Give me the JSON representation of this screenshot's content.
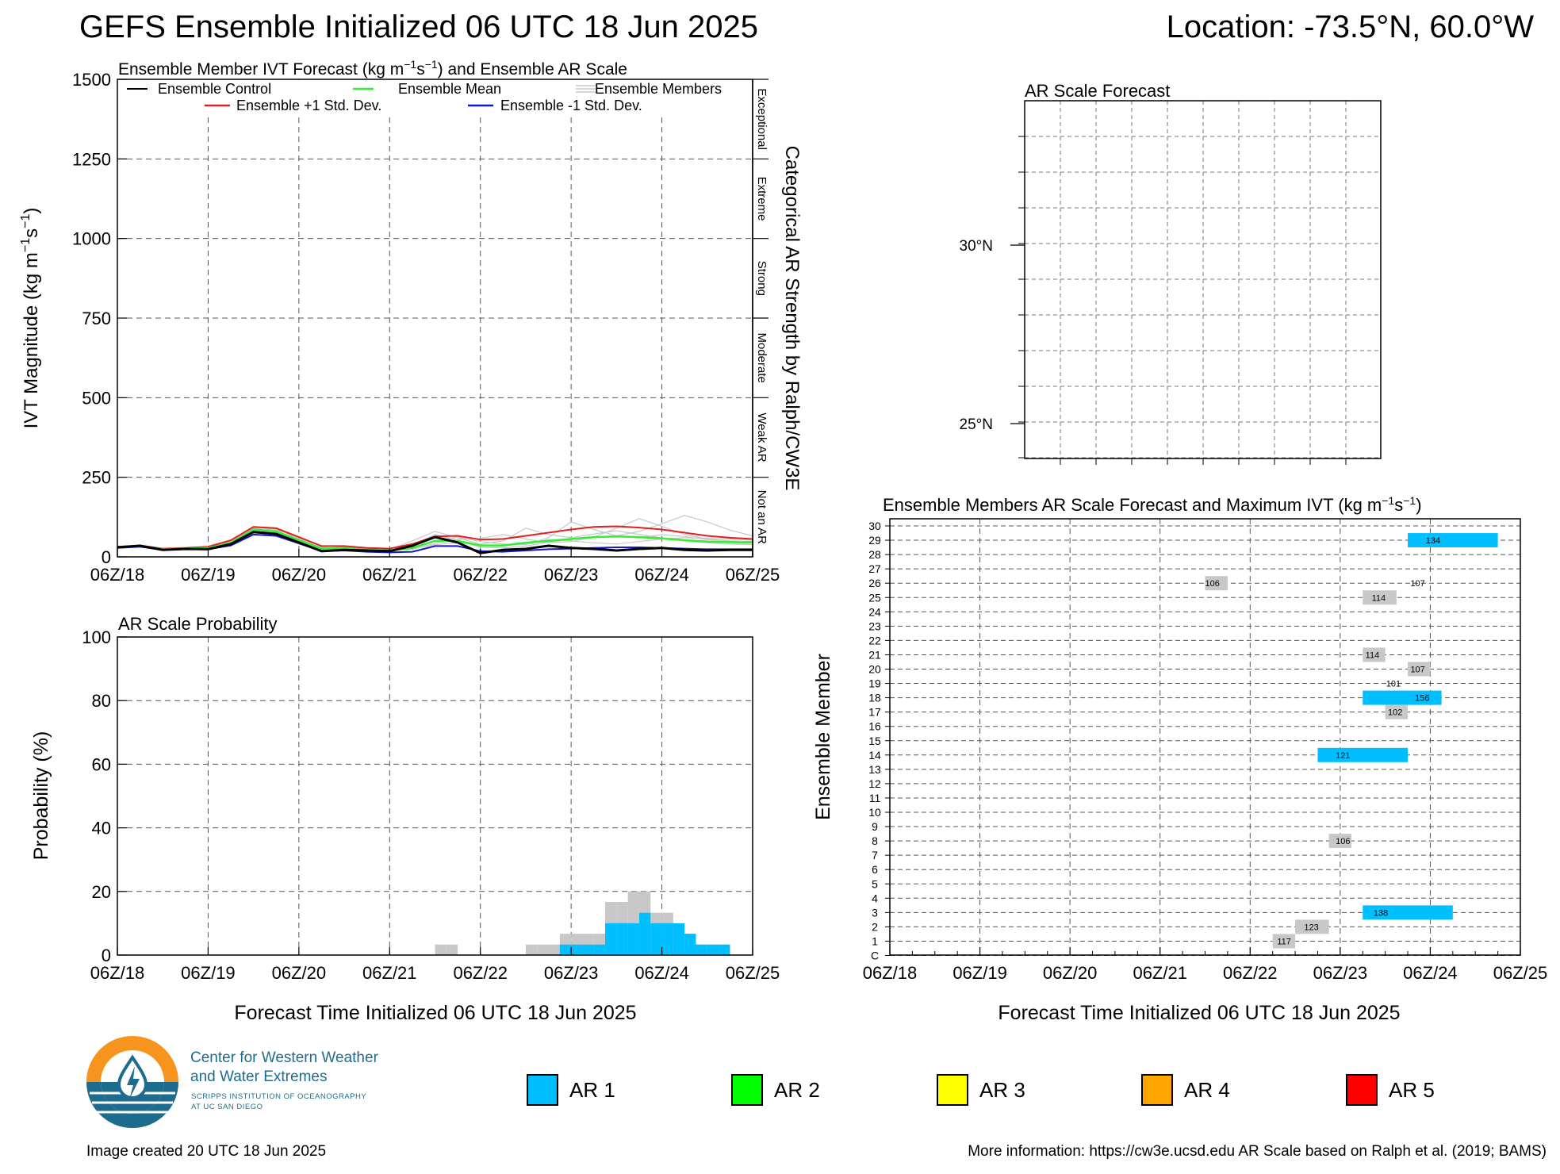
{
  "header": {
    "title": "GEFS Ensemble Initialized 06 UTC 18 Jun 2025",
    "location": "Location: -73.5°N, 60.0°W"
  },
  "colors": {
    "ar1": "#00bfff",
    "ar2": "#00ff00",
    "ar3": "#ffff00",
    "ar4": "#ffa500",
    "ar5": "#ff0000",
    "gray_bar": "#c8c8c8",
    "control": "#000000",
    "mean": "#33ee33",
    "plus_sd": "#e02020",
    "minus_sd": "#1515d0",
    "members": "#c8c8c8"
  },
  "x_ticks": [
    "06Z/18",
    "06Z/19",
    "06Z/20",
    "06Z/21",
    "06Z/22",
    "06Z/23",
    "06Z/24",
    "06Z/25"
  ],
  "chart_data": [
    {
      "id": "ivt",
      "type": "line",
      "title_pre": "Ensemble Member IVT Forecast (kg m",
      "title_sup1": "−1",
      "title_mid": "s",
      "title_sup2": "−1",
      "title_post": ") and Ensemble AR Scale",
      "ylabel_pre": "IVT Magnitude (kg m",
      "ylabel_sup1": "−1",
      "ylabel_mid": "s",
      "ylabel_sup2": "−1",
      "ylabel_post": ")",
      "right_axis_label": "Categorical AR Strength by Ralph/CW3E",
      "categories_right": [
        {
          "label": "Not an AR",
          "from": 0,
          "to": 250
        },
        {
          "label": "Weak AR",
          "from": 250,
          "to": 500
        },
        {
          "label": "Moderate",
          "from": 500,
          "to": 750
        },
        {
          "label": "Strong",
          "from": 750,
          "to": 1000
        },
        {
          "label": "Extreme",
          "from": 1000,
          "to": 1250
        },
        {
          "label": "Exceptional",
          "from": 1250,
          "to": 1500
        }
      ],
      "ylim": [
        0,
        1500
      ],
      "yticks": [
        0,
        250,
        500,
        750,
        1000,
        1250,
        1500
      ],
      "xlim_days": [
        0,
        7
      ],
      "grid": true,
      "legend": {
        "control": "Ensemble Control",
        "mean": "Ensemble Mean",
        "members": "Ensemble Members",
        "plus_sd": "Ensemble +1 Std. Dev.",
        "minus_sd": "Ensemble -1 Std. Dev."
      },
      "x_days": [
        0,
        0.25,
        0.5,
        0.75,
        1,
        1.25,
        1.5,
        1.75,
        2,
        2.25,
        2.5,
        2.75,
        3,
        3.25,
        3.5,
        3.75,
        4,
        4.25,
        4.5,
        4.75,
        5,
        5.25,
        5.5,
        5.75,
        6,
        6.25,
        6.5,
        6.75,
        7
      ],
      "series": [
        {
          "key": "control",
          "values": [
            30,
            35,
            22,
            25,
            24,
            40,
            78,
            72,
            45,
            18,
            22,
            20,
            18,
            35,
            62,
            45,
            12,
            22,
            25,
            35,
            28,
            25,
            20,
            25,
            28,
            22,
            20,
            22,
            22
          ]
        },
        {
          "key": "mean",
          "values": [
            30,
            34,
            24,
            26,
            28,
            44,
            86,
            80,
            52,
            26,
            28,
            22,
            20,
            28,
            50,
            50,
            36,
            36,
            44,
            50,
            56,
            62,
            64,
            62,
            58,
            52,
            48,
            46,
            45
          ]
        },
        {
          "key": "plus_sd",
          "values": [
            32,
            36,
            26,
            28,
            32,
            52,
            94,
            90,
            62,
            34,
            34,
            28,
            26,
            40,
            64,
            66,
            54,
            56,
            66,
            76,
            86,
            94,
            96,
            92,
            86,
            76,
            66,
            60,
            56
          ]
        },
        {
          "key": "minus_sd",
          "values": [
            28,
            32,
            22,
            24,
            24,
            36,
            70,
            66,
            42,
            18,
            20,
            16,
            14,
            16,
            34,
            34,
            18,
            16,
            20,
            24,
            26,
            28,
            30,
            30,
            28,
            26,
            24,
            24,
            24
          ]
        }
      ],
      "members": [
        [
          30,
          33,
          24,
          27,
          30,
          48,
          96,
          88,
          56,
          30,
          26,
          20,
          24,
          50,
          80,
          60,
          40,
          50,
          90,
          70,
          60,
          72,
          82,
          70,
          60,
          50,
          44,
          40,
          38
        ],
        [
          30,
          35,
          23,
          24,
          26,
          42,
          80,
          86,
          60,
          26,
          30,
          24,
          18,
          30,
          48,
          62,
          48,
          40,
          38,
          60,
          110,
          86,
          66,
          60,
          70,
          64,
          54,
          50,
          48
        ],
        [
          29,
          34,
          24,
          26,
          28,
          46,
          90,
          84,
          48,
          22,
          24,
          20,
          22,
          24,
          42,
          54,
          58,
          70,
          56,
          44,
          48,
          62,
          90,
          120,
          96,
          70,
          56,
          50,
          46
        ],
        [
          31,
          36,
          25,
          27,
          29,
          44,
          84,
          90,
          54,
          28,
          30,
          26,
          20,
          36,
          70,
          52,
          30,
          28,
          34,
          46,
          54,
          60,
          66,
          80,
          104,
          130,
          110,
          84,
          66
        ],
        [
          30,
          34,
          23,
          25,
          27,
          40,
          82,
          76,
          50,
          24,
          26,
          22,
          18,
          26,
          38,
          44,
          36,
          34,
          42,
          54,
          50,
          44,
          40,
          48,
          56,
          60,
          58,
          56,
          52
        ]
      ]
    },
    {
      "id": "prob",
      "type": "bar",
      "title": "AR Scale Probability",
      "ylabel": "Probability (%)",
      "ylim": [
        0,
        100
      ],
      "yticks": [
        0,
        20,
        40,
        60,
        80,
        100
      ],
      "xlim_days": [
        0,
        7
      ],
      "grid": true,
      "bin_days": 0.125,
      "bars_any": [
        {
          "day": 3.5,
          "value": 3.3
        },
        {
          "day": 3.625,
          "value": 3.3
        },
        {
          "day": 4.5,
          "value": 3.3
        },
        {
          "day": 4.625,
          "value": 3.3
        },
        {
          "day": 4.75,
          "value": 3.3
        },
        {
          "day": 4.875,
          "value": 6.7
        },
        {
          "day": 5.0,
          "value": 6.7
        },
        {
          "day": 5.125,
          "value": 6.7
        },
        {
          "day": 5.25,
          "value": 6.7
        },
        {
          "day": 5.375,
          "value": 16.7
        },
        {
          "day": 5.5,
          "value": 16.7
        },
        {
          "day": 5.625,
          "value": 20.0
        },
        {
          "day": 5.75,
          "value": 20.0
        },
        {
          "day": 5.875,
          "value": 13.3
        },
        {
          "day": 6.0,
          "value": 13.3
        },
        {
          "day": 6.125,
          "value": 10.0
        },
        {
          "day": 6.25,
          "value": 6.7
        },
        {
          "day": 6.375,
          "value": 3.3
        },
        {
          "day": 6.5,
          "value": 3.3
        },
        {
          "day": 6.625,
          "value": 3.3
        }
      ],
      "bars_ar1": [
        {
          "day": 4.875,
          "value": 3.3
        },
        {
          "day": 5.0,
          "value": 3.3
        },
        {
          "day": 5.125,
          "value": 3.3
        },
        {
          "day": 5.25,
          "value": 3.3
        },
        {
          "day": 5.375,
          "value": 10.0
        },
        {
          "day": 5.5,
          "value": 10.0
        },
        {
          "day": 5.625,
          "value": 10.0
        },
        {
          "day": 5.75,
          "value": 13.3
        },
        {
          "day": 5.875,
          "value": 10.0
        },
        {
          "day": 6.0,
          "value": 10.0
        },
        {
          "day": 6.125,
          "value": 10.0
        },
        {
          "day": 6.25,
          "value": 6.7
        },
        {
          "day": 6.375,
          "value": 3.3
        },
        {
          "day": 6.5,
          "value": 3.3
        },
        {
          "day": 6.625,
          "value": 3.3
        }
      ]
    },
    {
      "id": "map",
      "type": "map",
      "title": "AR Scale Forecast",
      "lat_labels": [
        "30°N",
        "25°N"
      ]
    },
    {
      "id": "members",
      "type": "timeline",
      "title_pre": "Ensemble Members AR Scale Forecast and Maximum IVT (kg m",
      "title_sup1": "−1",
      "title_mid": "s",
      "title_sup2": "−1",
      "title_post": ")",
      "ylabel": "Ensemble Member",
      "xlabel": "Forecast Time Initialized 06 UTC 18 Jun 2025",
      "y_labels": [
        "C",
        "1",
        "2",
        "3",
        "4",
        "5",
        "6",
        "7",
        "8",
        "9",
        "10",
        "11",
        "12",
        "13",
        "14",
        "15",
        "16",
        "17",
        "18",
        "19",
        "20",
        "21",
        "22",
        "23",
        "24",
        "25",
        "26",
        "27",
        "28",
        "29",
        "30"
      ],
      "xlim_days": [
        0,
        7
      ],
      "events": [
        {
          "member": 29,
          "start": 5.75,
          "end": 6.75,
          "cat": "ar1",
          "ivt": "134",
          "ivt_at": 5.95
        },
        {
          "member": 26,
          "start": 3.5,
          "end": 3.75,
          "cat": "gray",
          "ivt": "106",
          "ivt_at": 3.5
        },
        {
          "member": 26,
          "start": 5.75,
          "end": 5.75,
          "cat": "none",
          "ivt": "107",
          "ivt_at": 5.78
        },
        {
          "member": 25,
          "start": 5.25,
          "end": 5.625,
          "cat": "gray",
          "ivt": "114",
          "ivt_at": 5.35
        },
        {
          "member": 21,
          "start": 5.25,
          "end": 5.5,
          "cat": "gray",
          "ivt": "114",
          "ivt_at": 5.28
        },
        {
          "member": 20,
          "start": 5.75,
          "end": 6.0,
          "cat": "gray",
          "ivt": "107",
          "ivt_at": 5.78
        },
        {
          "member": 19,
          "start": 5.5,
          "end": 5.5,
          "cat": "none",
          "ivt": "101",
          "ivt_at": 5.51
        },
        {
          "member": 18,
          "start": 5.25,
          "end": 6.125,
          "cat": "ar1",
          "ivt": "156",
          "ivt_at": 5.83
        },
        {
          "member": 17,
          "start": 5.5,
          "end": 5.75,
          "cat": "gray",
          "ivt": "102",
          "ivt_at": 5.53
        },
        {
          "member": 14,
          "start": 4.75,
          "end": 5.75,
          "cat": "ar1",
          "ivt": "121",
          "ivt_at": 4.95
        },
        {
          "member": 8,
          "start": 4.875,
          "end": 5.125,
          "cat": "gray",
          "ivt": "106",
          "ivt_at": 4.95
        },
        {
          "member": 3,
          "start": 5.25,
          "end": 6.25,
          "cat": "ar1",
          "ivt": "138",
          "ivt_at": 5.37
        },
        {
          "member": 2,
          "start": 4.5,
          "end": 4.875,
          "cat": "gray",
          "ivt": "123",
          "ivt_at": 4.6
        },
        {
          "member": 1,
          "start": 4.25,
          "end": 4.5,
          "cat": "gray",
          "ivt": "117",
          "ivt_at": 4.3
        }
      ]
    }
  ],
  "left_xlabel": "Forecast Time Initialized 06 UTC 18 Jun 2025",
  "logo": {
    "name_line1": "Center for Western Weather",
    "name_line2": "and Water Extremes",
    "sub_line1": "SCRIPPS INSTITUTION OF OCEANOGRAPHY",
    "sub_line2": "AT UC SAN DIEGO"
  },
  "ar_legend": [
    "AR 1",
    "AR 2",
    "AR 3",
    "AR 4",
    "AR 5"
  ],
  "footer": {
    "created": "Image created 20 UTC 18 Jun 2025",
    "info": "More information: https://cw3e.ucsd.edu AR Scale based on Ralph et al. (2019; BAMS)"
  }
}
